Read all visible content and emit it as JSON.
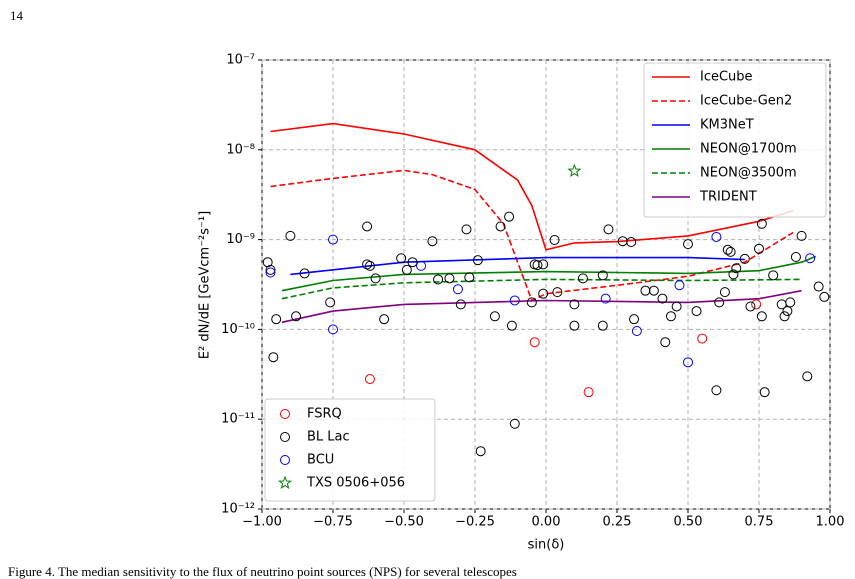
{
  "page_number": "14",
  "caption": "Figure 4.    The median sensitivity to the flux of neutrino point sources (NPS) for several telescopes",
  "chart_data": {
    "type": "line",
    "xlabel": "sin(δ)",
    "ylabel": "E² dN/dE  [GeVcm⁻²s⁻¹]",
    "xlim": [
      -1,
      1
    ],
    "ylim": [
      1e-12,
      1e-07
    ],
    "yscale": "log",
    "grid": true,
    "xticks": [
      {
        "value": -1,
        "label": "−1.00"
      },
      {
        "value": -0.75,
        "label": "−0.75"
      },
      {
        "value": -0.5,
        "label": "−0.50"
      },
      {
        "value": -0.25,
        "label": "−0.25"
      },
      {
        "value": 0,
        "label": "0.00"
      },
      {
        "value": 0.25,
        "label": "0.25"
      },
      {
        "value": 0.5,
        "label": "0.50"
      },
      {
        "value": 0.75,
        "label": "0.75"
      },
      {
        "value": 1,
        "label": "1.00"
      }
    ],
    "yticks": [
      {
        "value": 1e-12,
        "label": "10⁻¹²"
      },
      {
        "value": 1e-11,
        "label": "10⁻¹¹"
      },
      {
        "value": 1e-10,
        "label": "10⁻¹⁰"
      },
      {
        "value": 1e-09,
        "label": "10⁻⁹"
      },
      {
        "value": 1e-08,
        "label": "10⁻⁸"
      },
      {
        "value": 1e-07,
        "label": "10⁻⁷"
      }
    ],
    "line_legend_loc": "upper right",
    "scatter_legend_loc": "lower left",
    "series": [
      {
        "name": "IceCube",
        "color": "#ff0000",
        "linestyle": "solid",
        "x": [
          -0.97,
          -0.75,
          -0.5,
          -0.25,
          -0.1,
          -0.05,
          0,
          0.1,
          0.25,
          0.5,
          0.75,
          0.87
        ],
        "values": [
          1.6e-08,
          1.96e-08,
          1.5e-08,
          1e-08,
          4.6e-09,
          2.4e-09,
          7.7e-10,
          9.2e-10,
          9.5e-10,
          1.1e-09,
          1.6e-09,
          2.1e-09
        ]
      },
      {
        "name": "IceCube-Gen2",
        "color": "#ff0000",
        "linestyle": "dashed",
        "x": [
          -0.97,
          -0.75,
          -0.5,
          -0.4,
          -0.25,
          -0.15,
          -0.05,
          0,
          0.25,
          0.5,
          0.7,
          0.87
        ],
        "values": [
          3.9e-09,
          4.8e-09,
          5.9e-09,
          5.3e-09,
          3.6e-09,
          1.5e-09,
          2.1e-10,
          2.5e-10,
          3.1e-10,
          3.9e-10,
          5.6e-10,
          1.2e-09
        ]
      },
      {
        "name": "KM3NeT",
        "color": "#0000ff",
        "linestyle": "solid",
        "x": [
          -0.9,
          -0.5,
          0,
          0.5,
          0.7
        ],
        "values": [
          4.1e-10,
          5.6e-10,
          6.3e-10,
          6.3e-10,
          6e-10
        ]
      },
      {
        "name": "NEON@1700m",
        "color": "#008000",
        "linestyle": "solid",
        "x": [
          -0.93,
          -0.75,
          -0.5,
          0,
          0.5,
          0.75,
          0.9,
          0.95
        ],
        "values": [
          2.7e-10,
          3.5e-10,
          4.1e-10,
          4.4e-10,
          4.2e-10,
          4.5e-10,
          5.6e-10,
          6.5e-10
        ]
      },
      {
        "name": "NEON@3500m",
        "color": "#008000",
        "linestyle": "dashed",
        "x": [
          -0.93,
          -0.75,
          -0.5,
          0,
          0.5,
          0.9
        ],
        "values": [
          2.2e-10,
          2.9e-10,
          3.3e-10,
          3.6e-10,
          3.5e-10,
          3.6e-10
        ]
      },
      {
        "name": "TRIDENT",
        "color": "#800080",
        "linestyle": "solid",
        "x": [
          -0.93,
          -0.75,
          -0.5,
          0,
          0.5,
          0.75,
          0.9
        ],
        "values": [
          1.2e-10,
          1.6e-10,
          1.9e-10,
          2.1e-10,
          2e-10,
          2.2e-10,
          2.7e-10
        ]
      }
    ],
    "scatter_series": [
      {
        "name": "FSRQ",
        "color": "#ff0000",
        "marker": "circle",
        "x": [
          -0.62,
          -0.04,
          0.15,
          0.55,
          0.74
        ],
        "values": [
          2.8e-11,
          7.2e-11,
          2e-11,
          7.9e-11,
          1.9e-10
        ]
      },
      {
        "name": "BL Lac",
        "color": "#000000",
        "marker": "circle",
        "x": [
          -0.98,
          -0.97,
          -0.96,
          -0.95,
          -0.9,
          -0.88,
          -0.85,
          -0.76,
          -0.63,
          -0.63,
          -0.62,
          -0.6,
          -0.57,
          -0.51,
          -0.49,
          -0.47,
          -0.4,
          -0.38,
          -0.34,
          -0.3,
          -0.28,
          -0.27,
          -0.24,
          -0.23,
          -0.18,
          -0.16,
          -0.13,
          -0.12,
          -0.11,
          -0.05,
          -0.04,
          -0.03,
          -0.01,
          -0.01,
          0.03,
          0.04,
          0.1,
          0.1,
          0.13,
          0.2,
          0.2,
          0.22,
          0.27,
          0.3,
          0.31,
          0.35,
          0.38,
          0.41,
          0.42,
          0.44,
          0.46,
          0.5,
          0.53,
          0.6,
          0.61,
          0.63,
          0.64,
          0.65,
          0.66,
          0.67,
          0.7,
          0.72,
          0.75,
          0.76,
          0.76,
          0.77,
          0.8,
          0.83,
          0.84,
          0.85,
          0.86,
          0.88,
          0.9,
          0.92,
          0.96,
          0.98
        ],
        "values": [
          5.6e-10,
          4.6e-10,
          4.9e-11,
          1.3e-10,
          1.1e-09,
          1.4e-10,
          4.2e-10,
          2e-10,
          1.4e-09,
          5.3e-10,
          5.1e-10,
          3.7e-10,
          1.3e-10,
          6.2e-10,
          4.6e-10,
          5.6e-10,
          9.6e-10,
          3.6e-10,
          3.7e-10,
          1.9e-10,
          1.3e-09,
          3.8e-10,
          5.9e-10,
          4.4e-12,
          1.4e-10,
          1.4e-09,
          1.8e-09,
          1.1e-10,
          8.9e-12,
          2e-10,
          5.3e-10,
          5.2e-10,
          5.3e-10,
          2.5e-10,
          9.9e-10,
          2.6e-10,
          1.9e-10,
          1.1e-10,
          3.7e-10,
          4e-10,
          1.1e-10,
          1.3e-09,
          9.6e-10,
          9.4e-10,
          1.3e-10,
          2.7e-10,
          2.7e-10,
          2.2e-10,
          7.2e-11,
          1.4e-10,
          1.8e-10,
          8.9e-10,
          1.6e-10,
          2.1e-11,
          2e-10,
          2.6e-10,
          7.7e-10,
          7.3e-10,
          4.1e-10,
          4.8e-10,
          6.1e-10,
          1.8e-10,
          7.9e-10,
          1.4e-10,
          1.5e-09,
          2e-11,
          4e-10,
          1.9e-10,
          1.4e-10,
          1.6e-10,
          2e-10,
          6.4e-10,
          1.1e-09,
          3e-11,
          3e-10,
          2.3e-10
        ]
      },
      {
        "name": "BCU",
        "color": "#0000ff",
        "marker": "circle",
        "x": [
          -0.97,
          -0.75,
          -0.75,
          -0.44,
          -0.31,
          -0.11,
          0.21,
          0.32,
          0.47,
          0.5,
          0.6,
          0.93
        ],
        "values": [
          4.3e-10,
          1e-09,
          1e-10,
          5.1e-10,
          2.8e-10,
          2.1e-10,
          2.2e-10,
          9.6e-11,
          3.1e-10,
          4.3e-11,
          1.07e-09,
          6.2e-10
        ]
      },
      {
        "name": "TXS 0506+056",
        "color": "#008000",
        "marker": "star",
        "x": [
          0.1
        ],
        "values": [
          5.8e-09
        ]
      }
    ]
  }
}
